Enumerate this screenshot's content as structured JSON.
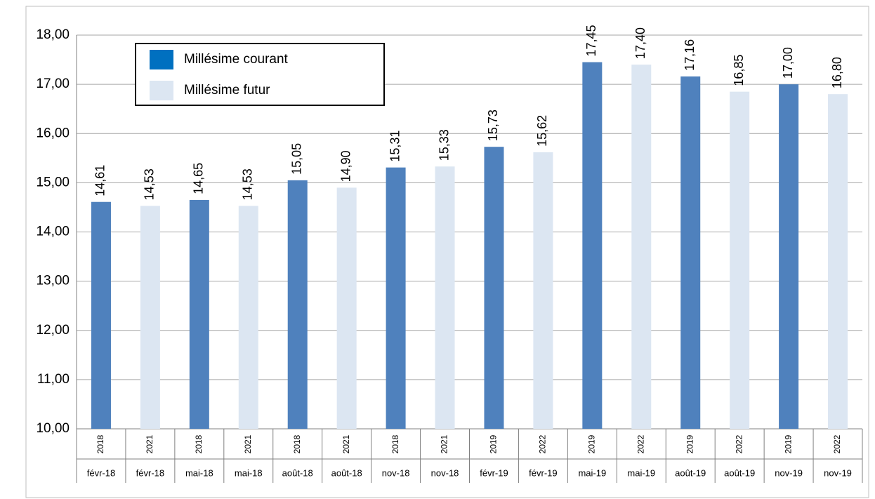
{
  "chart_data": {
    "type": "bar",
    "categories": [
      "févr-18",
      "févr-18",
      "mai-18",
      "mai-18",
      "août-18",
      "août-18",
      "nov-18",
      "nov-18",
      "févr-19",
      "févr-19",
      "mai-19",
      "mai-19",
      "août-19",
      "août-19",
      "nov-19",
      "nov-19"
    ],
    "subcategories": [
      "2018",
      "2021",
      "2018",
      "2021",
      "2018",
      "2021",
      "2018",
      "2021",
      "2019",
      "2022",
      "2019",
      "2022",
      "2019",
      "2022",
      "2019",
      "2022"
    ],
    "series": [
      {
        "name": "Millésime courant",
        "color": "#4f81bd",
        "values": [
          14.61,
          null,
          14.65,
          null,
          15.05,
          null,
          15.31,
          null,
          15.73,
          null,
          17.45,
          null,
          17.16,
          null,
          17.0,
          null
        ],
        "value_labels": [
          "14,61",
          null,
          "14,65",
          null,
          "15,05",
          null,
          "15,31",
          null,
          "15,73",
          null,
          "17,45",
          null,
          "17,16",
          null,
          "17,00",
          null
        ]
      },
      {
        "name": "Millésime futur",
        "color": "#dce6f2",
        "values": [
          null,
          14.53,
          null,
          14.53,
          null,
          14.9,
          null,
          15.33,
          null,
          15.62,
          null,
          17.4,
          null,
          16.85,
          null,
          16.8
        ],
        "value_labels": [
          null,
          "14,53",
          null,
          "14,53",
          null,
          "14,90",
          null,
          "15,33",
          null,
          "15,62",
          null,
          "17,40",
          null,
          "16,85",
          null,
          "16,80"
        ]
      }
    ],
    "ylim": [
      10,
      18
    ],
    "yticks": [
      {
        "value": 10,
        "label": "10,00"
      },
      {
        "value": 11,
        "label": "11,00"
      },
      {
        "value": 12,
        "label": "12,00"
      },
      {
        "value": 13,
        "label": "13,00"
      },
      {
        "value": 14,
        "label": "14,00"
      },
      {
        "value": 15,
        "label": "15,00"
      },
      {
        "value": 16,
        "label": "16,00"
      },
      {
        "value": 17,
        "label": "17,00"
      },
      {
        "value": 18,
        "label": "18,00"
      }
    ],
    "grid": true,
    "legend": "upper left"
  }
}
